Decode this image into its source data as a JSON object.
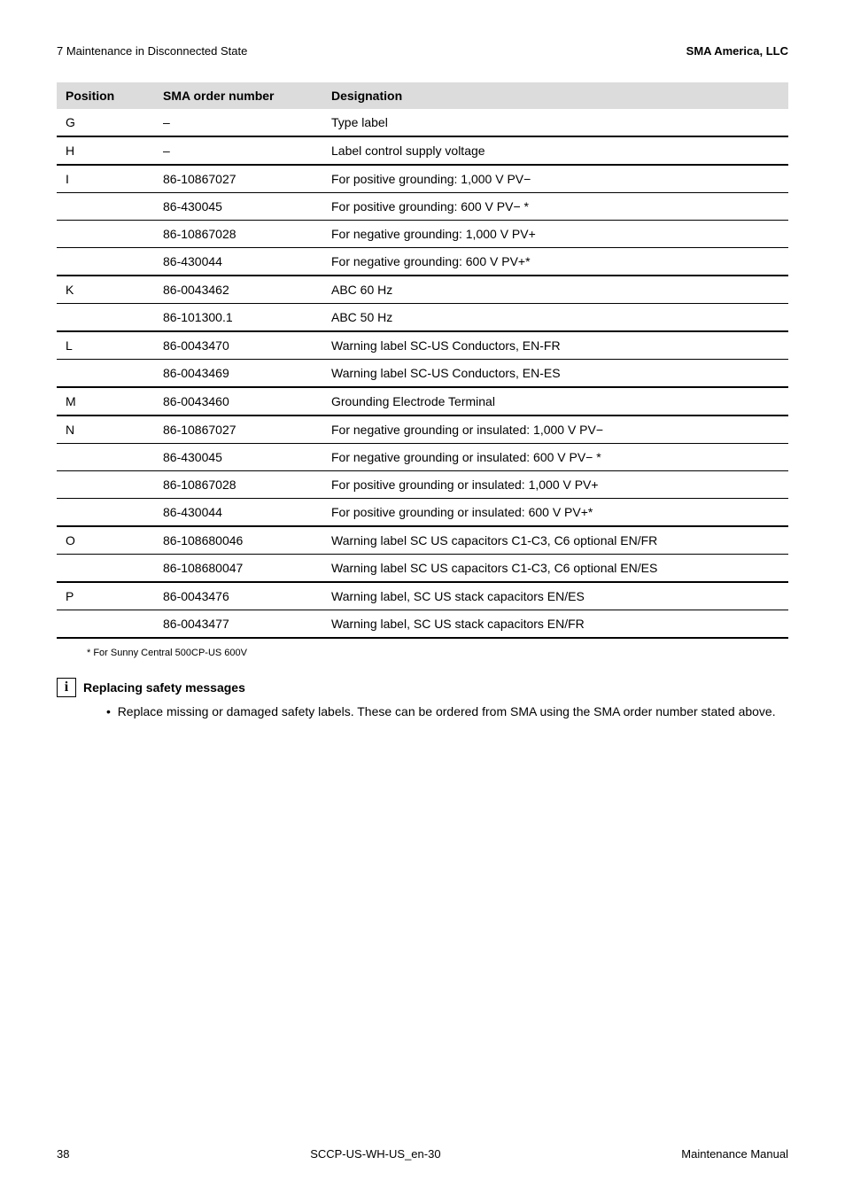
{
  "header": {
    "section": "7  Maintenance in Disconnected State",
    "company": "SMA America, LLC"
  },
  "table": {
    "columns": [
      "Position",
      "SMA order number",
      "Designation"
    ],
    "rows": [
      {
        "pos": "G",
        "order": "–",
        "desig": "Type label"
      },
      {
        "pos": "H",
        "order": "–",
        "desig": "Label control supply voltage"
      },
      {
        "pos": "I",
        "order": "86-10867027",
        "desig": "For positive grounding: 1,000 V PV−"
      },
      {
        "pos": "",
        "order": "86-430045",
        "desig": "For positive grounding: 600 V PV− *"
      },
      {
        "pos": "",
        "order": "86-10867028",
        "desig": "For negative grounding: 1,000 V PV+"
      },
      {
        "pos": "",
        "order": "86-430044",
        "desig": "For negative grounding: 600 V PV+*"
      },
      {
        "pos": "K",
        "order": "86-0043462",
        "desig": "ABC 60 Hz"
      },
      {
        "pos": "",
        "order": "86-101300.1",
        "desig": "ABC 50 Hz"
      },
      {
        "pos": "L",
        "order": "86-0043470",
        "desig": "Warning label SC-US Conductors, EN-FR"
      },
      {
        "pos": "",
        "order": "86-0043469",
        "desig": "Warning label SC-US Conductors, EN-ES"
      },
      {
        "pos": "M",
        "order": "86-0043460",
        "desig": "Grounding Electrode Terminal"
      },
      {
        "pos": "N",
        "order": "86-10867027",
        "desig": "For negative grounding or insulated: 1,000 V PV−"
      },
      {
        "pos": "",
        "order": "86-430045",
        "desig": "For negative grounding or insulated: 600 V PV− *"
      },
      {
        "pos": "",
        "order": "86-10867028",
        "desig": "For positive grounding or insulated: 1,000 V PV+"
      },
      {
        "pos": "",
        "order": "86-430044",
        "desig": "For positive grounding or insulated: 600 V PV+*"
      },
      {
        "pos": "O",
        "order": "86-108680046",
        "desig": "Warning label SC US capacitors C1-C3, C6 optional EN/FR"
      },
      {
        "pos": "",
        "order": "86-108680047",
        "desig": "Warning label SC US capacitors C1-C3, C6 optional EN/ES"
      },
      {
        "pos": "P",
        "order": "86-0043476",
        "desig": "Warning label, SC US stack capacitors EN/ES"
      },
      {
        "pos": "",
        "order": "86-0043477",
        "desig": "Warning label, SC US stack capacitors EN/FR"
      }
    ],
    "row_border_class": [
      "thick",
      "thick",
      "thin",
      "thin",
      "thin",
      "thick",
      "thin",
      "thick",
      "thin",
      "thick",
      "thick",
      "thin",
      "thin",
      "thin",
      "thick",
      "thin",
      "thick",
      "thin",
      "thick"
    ]
  },
  "footnote": "* For Sunny Central 500CP-US 600V",
  "info": {
    "title": "Replacing safety messages",
    "bullet": "Replace missing or damaged safety labels. These can be ordered from SMA using the SMA order number stated above."
  },
  "footer": {
    "page": "38",
    "doc": "SCCP-US-WH-US_en-30",
    "kind": "Maintenance Manual"
  }
}
